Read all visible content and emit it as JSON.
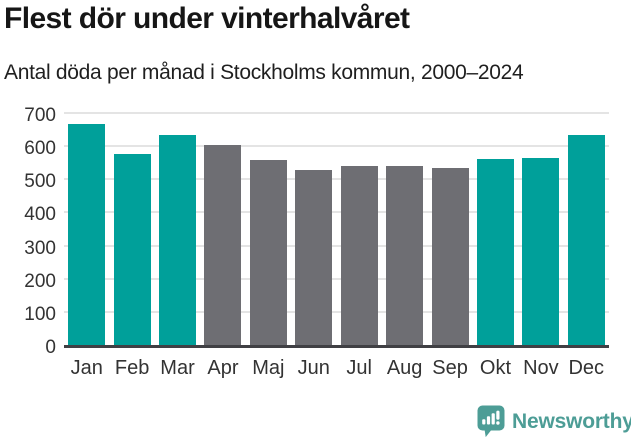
{
  "header": {
    "title": "Flest dör under vinterhalvåret",
    "subtitle": "Antal döda per månad i Stockholms kommun, 2000–2024"
  },
  "chart_data": {
    "type": "bar",
    "categories": [
      "Jan",
      "Feb",
      "Mar",
      "Apr",
      "Maj",
      "Jun",
      "Jul",
      "Aug",
      "Sep",
      "Okt",
      "Nov",
      "Dec"
    ],
    "values": [
      668,
      577,
      634,
      603,
      558,
      527,
      540,
      540,
      533,
      560,
      563,
      633
    ],
    "highlighted_categories": [
      "Jan",
      "Feb",
      "Mar",
      "Okt",
      "Nov",
      "Dec"
    ],
    "highlight_color": "#00a09a",
    "default_color": "#6e6e73",
    "title": "Flest dör under vinterhalvåret",
    "subtitle": "Antal döda per månad i Stockholms kommun, 2000–2024",
    "xlabel": "",
    "ylabel": "",
    "ylim": [
      0,
      700
    ],
    "yticks": [
      0,
      100,
      200,
      300,
      400,
      500,
      600,
      700
    ],
    "grid": true,
    "legend": false,
    "axis_line_color": "#404044",
    "gridline_color": "#e4e4e4"
  },
  "branding": {
    "logo_text": "Newsworthy",
    "logo_color": "#4d9d96"
  }
}
